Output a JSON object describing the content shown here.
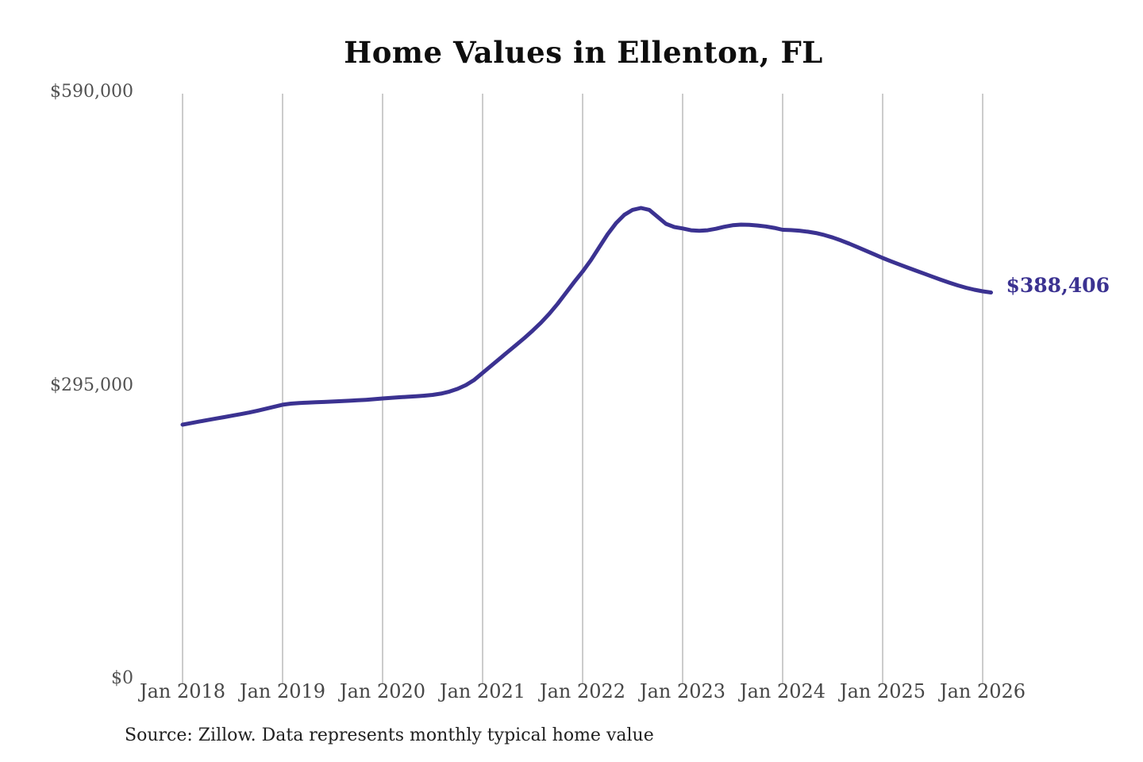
{
  "source_note": "Source: Zillow. Data represents monthly typical home value",
  "colors": {
    "line": "#3b3291",
    "annotation": "#3b3291",
    "grid": "#cccccc",
    "title_text": "#0e0e0e",
    "x_tick_text": "#474747",
    "y_tick_text": "#525252",
    "source_text": "#1f1f1f",
    "background": "#ffffff"
  },
  "chart_data": {
    "type": "line",
    "title": "Home Values in Ellenton, FL",
    "series_name": "Monthly typical home value (USD)",
    "grid": "vertical-only",
    "legend": "none",
    "ylim": [
      0,
      590000
    ],
    "y_ticks": [
      {
        "value": 590000,
        "label": "$590,000"
      },
      {
        "value": 295000,
        "label": "$295,000"
      },
      {
        "value": 0,
        "label": "$0"
      }
    ],
    "x_ticks": [
      {
        "pos": "2018-01",
        "label": "Jan 2018"
      },
      {
        "pos": "2019-01",
        "label": "Jan 2019"
      },
      {
        "pos": "2020-01",
        "label": "Jan 2020"
      },
      {
        "pos": "2021-01",
        "label": "Jan 2021"
      },
      {
        "pos": "2022-01",
        "label": "Jan 2022"
      },
      {
        "pos": "2023-01",
        "label": "Jan 2023"
      },
      {
        "pos": "2024-01",
        "label": "Jan 2024"
      },
      {
        "pos": "2025-01",
        "label": "Jan 2025"
      },
      {
        "pos": "2026-01",
        "label": "Jan 2026"
      }
    ],
    "x": [
      "2018-01",
      "2018-02",
      "2018-03",
      "2018-04",
      "2018-05",
      "2018-06",
      "2018-07",
      "2018-08",
      "2018-09",
      "2018-10",
      "2018-11",
      "2018-12",
      "2019-01",
      "2019-02",
      "2019-03",
      "2019-04",
      "2019-05",
      "2019-06",
      "2019-07",
      "2019-08",
      "2019-09",
      "2019-10",
      "2019-11",
      "2019-12",
      "2020-01",
      "2020-02",
      "2020-03",
      "2020-04",
      "2020-05",
      "2020-06",
      "2020-07",
      "2020-08",
      "2020-09",
      "2020-10",
      "2020-11",
      "2020-12",
      "2021-01",
      "2021-02",
      "2021-03",
      "2021-04",
      "2021-05",
      "2021-06",
      "2021-07",
      "2021-08",
      "2021-09",
      "2021-10",
      "2021-11",
      "2021-12",
      "2022-01",
      "2022-02",
      "2022-03",
      "2022-04",
      "2022-05",
      "2022-06",
      "2022-07",
      "2022-08",
      "2022-09",
      "2022-10",
      "2022-11",
      "2022-12",
      "2023-01",
      "2023-02",
      "2023-03",
      "2023-04",
      "2023-05",
      "2023-06",
      "2023-07",
      "2023-08",
      "2023-09",
      "2023-10",
      "2023-11",
      "2023-12",
      "2024-01",
      "2024-02",
      "2024-03",
      "2024-04",
      "2024-05",
      "2024-06",
      "2024-07",
      "2024-08",
      "2024-09",
      "2024-10",
      "2024-11",
      "2024-12",
      "2025-01",
      "2025-02",
      "2025-03",
      "2025-04",
      "2025-05",
      "2025-06",
      "2025-07",
      "2025-08",
      "2025-09",
      "2025-10",
      "2025-11",
      "2025-12",
      "2026-01",
      "2026-02"
    ],
    "values": [
      255500,
      257000,
      258600,
      260100,
      261600,
      263100,
      264600,
      266100,
      267700,
      269500,
      271500,
      273500,
      275500,
      276600,
      277300,
      277700,
      278000,
      278300,
      278700,
      279100,
      279500,
      280000,
      280500,
      281100,
      281800,
      282400,
      283000,
      283500,
      284000,
      284600,
      285400,
      286700,
      288700,
      291500,
      295300,
      300500,
      307500,
      314500,
      321500,
      328500,
      335500,
      342500,
      350000,
      358000,
      367000,
      377000,
      388000,
      399000,
      409500,
      421000,
      434000,
      447000,
      458000,
      466500,
      471500,
      473400,
      471500,
      464500,
      457500,
      454300,
      452800,
      451000,
      450500,
      451000,
      452500,
      454500,
      456000,
      456700,
      456400,
      455800,
      454800,
      453400,
      451500,
      451200,
      450600,
      449600,
      448200,
      446200,
      443700,
      440800,
      437500,
      434000,
      430400,
      426800,
      423100,
      419800,
      416600,
      413500,
      410400,
      407300,
      404200,
      401200,
      398300,
      395600,
      393200,
      391200,
      389600,
      388406
    ],
    "annotation": {
      "text": "$388,406",
      "at": "2026-02"
    }
  }
}
